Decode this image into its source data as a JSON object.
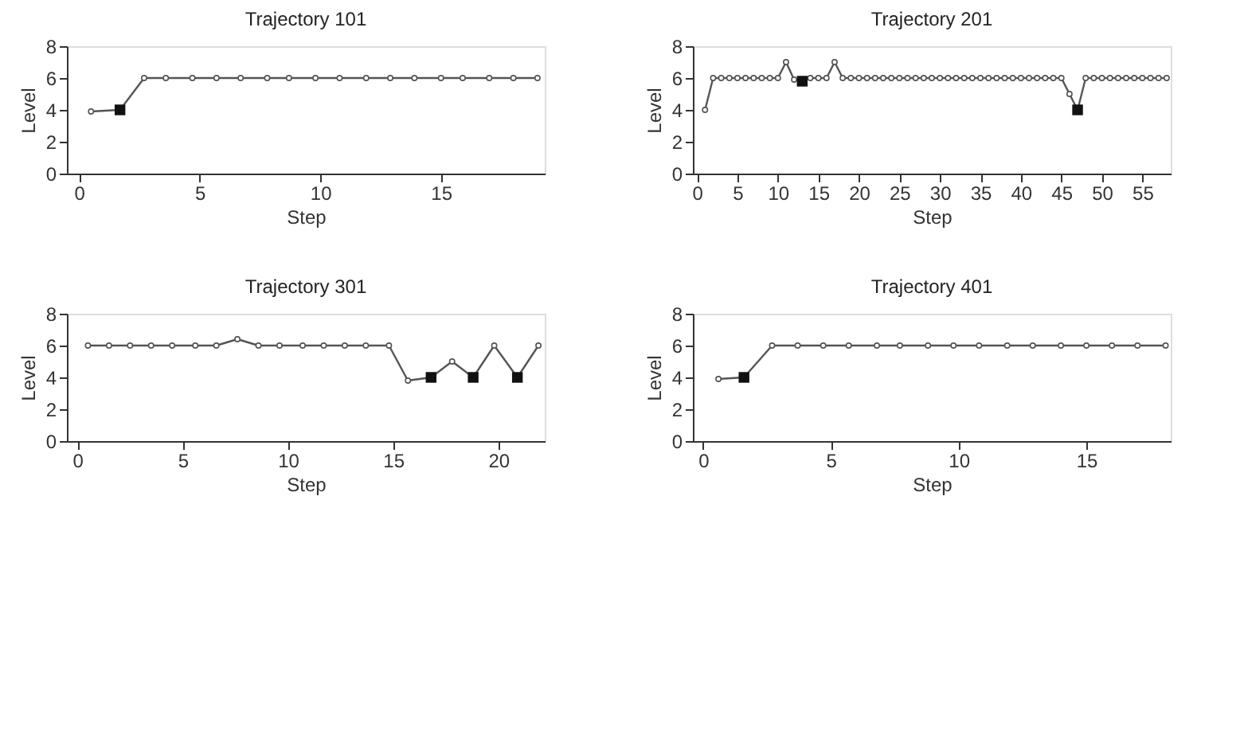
{
  "chart_data": [
    {
      "type": "line",
      "title": "Trajectory 101",
      "xlabel": "Step",
      "ylabel": "Level",
      "x": [
        0.5,
        1.7,
        2.7,
        3.6,
        4.7,
        5.7,
        6.7,
        7.8,
        8.7,
        9.8,
        10.8,
        11.9,
        12.9,
        13.9,
        15.0,
        15.9,
        17.0,
        18.0,
        19.0
      ],
      "xlim": [
        -0.5,
        19.3
      ],
      "xticks": [
        0,
        5,
        10,
        15
      ],
      "ylim": [
        0,
        8
      ],
      "yticks": [
        0,
        2,
        4,
        6,
        8
      ],
      "grid": false,
      "series": [
        {
          "color": "#555555",
          "marker": "circle",
          "values": [
            3.9,
            4,
            6,
            6,
            6,
            6,
            6,
            6,
            6,
            6,
            6,
            6,
            6,
            6,
            6,
            6,
            6,
            6,
            6
          ]
        },
        {
          "type": "scatter",
          "color": "#111111",
          "marker": "square",
          "x": [
            1.7
          ],
          "values": [
            4
          ]
        }
      ]
    },
    {
      "type": "line",
      "title": "Trajectory 201",
      "xlabel": "Step",
      "ylabel": "Level",
      "x": [
        1,
        2,
        3,
        4,
        5,
        6,
        7,
        8,
        9,
        10,
        11,
        12,
        13,
        14,
        15,
        16,
        17,
        18,
        19,
        20,
        21,
        22,
        23,
        24,
        25,
        26,
        27,
        28,
        29,
        30,
        31,
        32,
        33,
        34,
        35,
        36,
        37,
        38,
        39,
        40,
        41,
        42,
        43,
        44,
        45,
        46,
        47,
        48,
        49,
        50,
        51,
        52,
        53,
        54,
        55,
        56,
        57,
        58
      ],
      "xlim": [
        -0.5,
        58.5
      ],
      "xticks": [
        0,
        5,
        10,
        15,
        20,
        25,
        30,
        35,
        40,
        45,
        50,
        55
      ],
      "ylim": [
        0,
        8
      ],
      "yticks": [
        0,
        2,
        4,
        6,
        8
      ],
      "grid": false,
      "series": [
        {
          "color": "#555555",
          "marker": "circle",
          "values": [
            4,
            6,
            6,
            6,
            6,
            6,
            6,
            6,
            6,
            6,
            7,
            5.9,
            5.8,
            6,
            6,
            6,
            7,
            6,
            6,
            6,
            6,
            6,
            6,
            6,
            6,
            6,
            6,
            6,
            6,
            6,
            6,
            6,
            6,
            6,
            6,
            6,
            6,
            6,
            6,
            6,
            6,
            6,
            6,
            6,
            6,
            5,
            4,
            6,
            6,
            6,
            6,
            6,
            6,
            6,
            6,
            6,
            6,
            6
          ]
        },
        {
          "type": "scatter",
          "color": "#111111",
          "marker": "square",
          "x": [
            13,
            47
          ],
          "values": [
            5.8,
            4
          ]
        }
      ]
    },
    {
      "type": "line",
      "title": "Trajectory 301",
      "xlabel": "Step",
      "ylabel": "Level",
      "x": [
        0.5,
        1.5,
        2.5,
        3.5,
        4.5,
        5.6,
        6.6,
        7.6,
        8.6,
        9.6,
        10.7,
        11.7,
        12.7,
        13.7,
        14.8,
        15.7,
        16.8,
        17.8,
        18.8,
        19.8,
        20.9,
        21.9
      ],
      "xlim": [
        -0.5,
        22.2
      ],
      "xticks": [
        0,
        5,
        10,
        15,
        20
      ],
      "ylim": [
        0,
        8
      ],
      "yticks": [
        0,
        2,
        4,
        6,
        8
      ],
      "grid": false,
      "series": [
        {
          "color": "#555555",
          "marker": "circle",
          "values": [
            6,
            6,
            6,
            6,
            6,
            6,
            6,
            6.4,
            6,
            6,
            6,
            6,
            6,
            6,
            6,
            3.8,
            4,
            5,
            4,
            6,
            4,
            6
          ]
        },
        {
          "type": "scatter",
          "color": "#111111",
          "marker": "square",
          "x": [
            16.8,
            18.8,
            20.9
          ],
          "values": [
            4,
            4,
            4
          ]
        }
      ]
    },
    {
      "type": "line",
      "title": "Trajectory 401",
      "xlabel": "Step",
      "ylabel": "Level",
      "x": [
        0.6,
        1.6,
        2.7,
        3.7,
        4.7,
        5.7,
        6.8,
        7.7,
        8.8,
        9.8,
        10.8,
        11.9,
        12.9,
        14.0,
        15.0,
        16.0,
        17.0,
        18.1
      ],
      "xlim": [
        -0.4,
        18.3
      ],
      "xticks": [
        0,
        5,
        10,
        15
      ],
      "ylim": [
        0,
        8
      ],
      "yticks": [
        0,
        2,
        4,
        6,
        8
      ],
      "grid": false,
      "series": [
        {
          "color": "#555555",
          "marker": "circle",
          "values": [
            3.9,
            4,
            6,
            6,
            6,
            6,
            6,
            6,
            6,
            6,
            6,
            6,
            6,
            6,
            6,
            6,
            6,
            6
          ]
        },
        {
          "type": "scatter",
          "color": "#111111",
          "marker": "square",
          "x": [
            1.6
          ],
          "values": [
            4
          ]
        }
      ]
    }
  ]
}
